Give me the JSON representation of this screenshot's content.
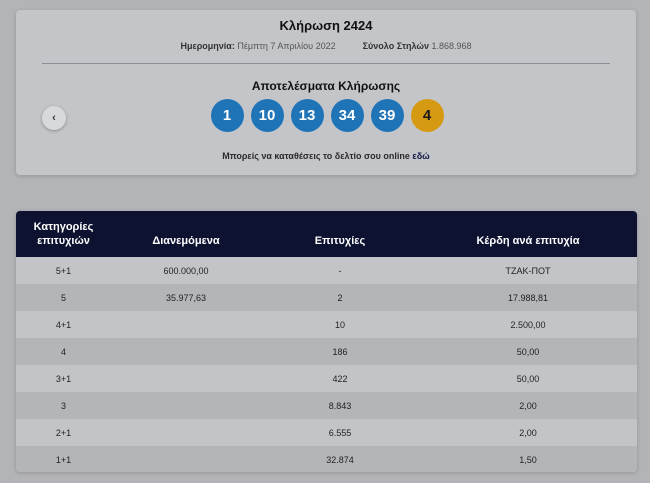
{
  "draw": {
    "title": "Κλήρωση 2424",
    "date_label": "Ημερομηνία:",
    "date_value": "Πέμπτη 7 Απριλίου 2022",
    "columns_label": "Σύνολο Στηλών",
    "columns_value": "1.868.968",
    "results_title": "Αποτελέσματα Κλήρωσης",
    "numbers": [
      "1",
      "10",
      "13",
      "34",
      "39"
    ],
    "joker": "4",
    "online_text": "Μπορείς να καταθέσεις το δελτίο σου online",
    "online_link": "εδώ",
    "prev_icon": "‹"
  },
  "table": {
    "headers": {
      "category": "Κατηγορίες επιτυχιών",
      "distributed": "Διανεμόμενα",
      "winners": "Επιτυχίες",
      "prize": "Κέρδη ανά επιτυχία"
    },
    "rows": [
      {
        "category": "5+1",
        "distributed": "600.000,00",
        "winners": "-",
        "prize": "ΤΖΑΚ-ΠΟΤ"
      },
      {
        "category": "5",
        "distributed": "35.977,63",
        "winners": "2",
        "prize": "17.988,81"
      },
      {
        "category": "4+1",
        "distributed": "",
        "winners": "10",
        "prize": "2.500,00"
      },
      {
        "category": "4",
        "distributed": "",
        "winners": "186",
        "prize": "50,00"
      },
      {
        "category": "3+1",
        "distributed": "",
        "winners": "422",
        "prize": "50,00"
      },
      {
        "category": "3",
        "distributed": "",
        "winners": "8.843",
        "prize": "2,00"
      },
      {
        "category": "2+1",
        "distributed": "",
        "winners": "6.555",
        "prize": "2,00"
      },
      {
        "category": "1+1",
        "distributed": "",
        "winners": "32.874",
        "prize": "1,50"
      }
    ]
  },
  "colors": {
    "ball": "#1f73b7",
    "joker": "#d69a12",
    "table_header": "#0c1230",
    "backdrop": "#b3b4b8"
  }
}
